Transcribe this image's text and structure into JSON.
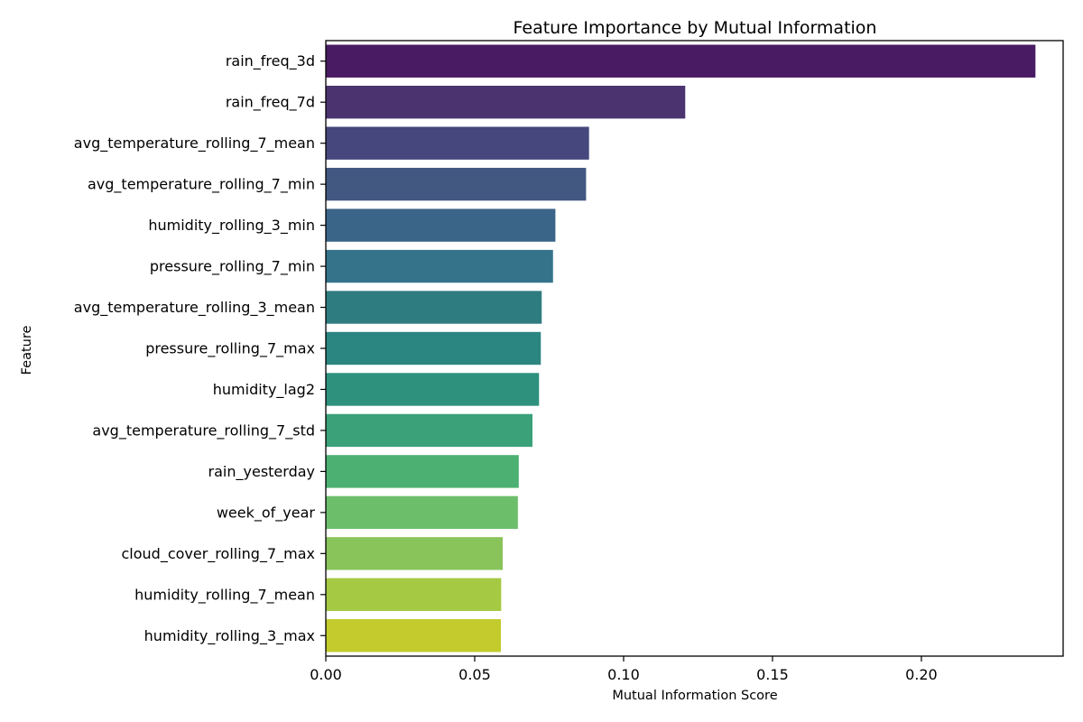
{
  "chart_data": {
    "type": "bar",
    "orientation": "horizontal",
    "title": "Feature Importance by Mutual Information",
    "xlabel": "Mutual Information Score",
    "ylabel": "Feature",
    "xlim": [
      0,
      0.2476
    ],
    "xticks": [
      0.0,
      0.05,
      0.1,
      0.15,
      0.2
    ],
    "xtick_labels": [
      "0.00",
      "0.05",
      "0.10",
      "0.15",
      "0.20"
    ],
    "grid": false,
    "colormap": "viridis",
    "categories": [
      "rain_freq_3d",
      "rain_freq_7d",
      "avg_temperature_rolling_7_mean",
      "avg_temperature_rolling_7_min",
      "humidity_rolling_3_min",
      "pressure_rolling_7_min",
      "avg_temperature_rolling_3_mean",
      "pressure_rolling_7_max",
      "humidity_lag2",
      "avg_temperature_rolling_7_std",
      "rain_yesterday",
      "week_of_year",
      "cloud_cover_rolling_7_max",
      "humidity_rolling_7_mean",
      "humidity_rolling_3_max"
    ],
    "values": [
      0.2383,
      0.1207,
      0.0884,
      0.0874,
      0.0771,
      0.0763,
      0.0725,
      0.0722,
      0.0716,
      0.0694,
      0.0648,
      0.0645,
      0.0594,
      0.0589,
      0.0588
    ],
    "colors": [
      "#481b63",
      "#4b336f",
      "#46477d",
      "#435881",
      "#3b6588",
      "#35738b",
      "#2f7c80",
      "#2b8580",
      "#2d917e",
      "#3ba179",
      "#4cb072",
      "#6dbe6b",
      "#89c45b",
      "#a6c943",
      "#c3cb2d"
    ]
  }
}
